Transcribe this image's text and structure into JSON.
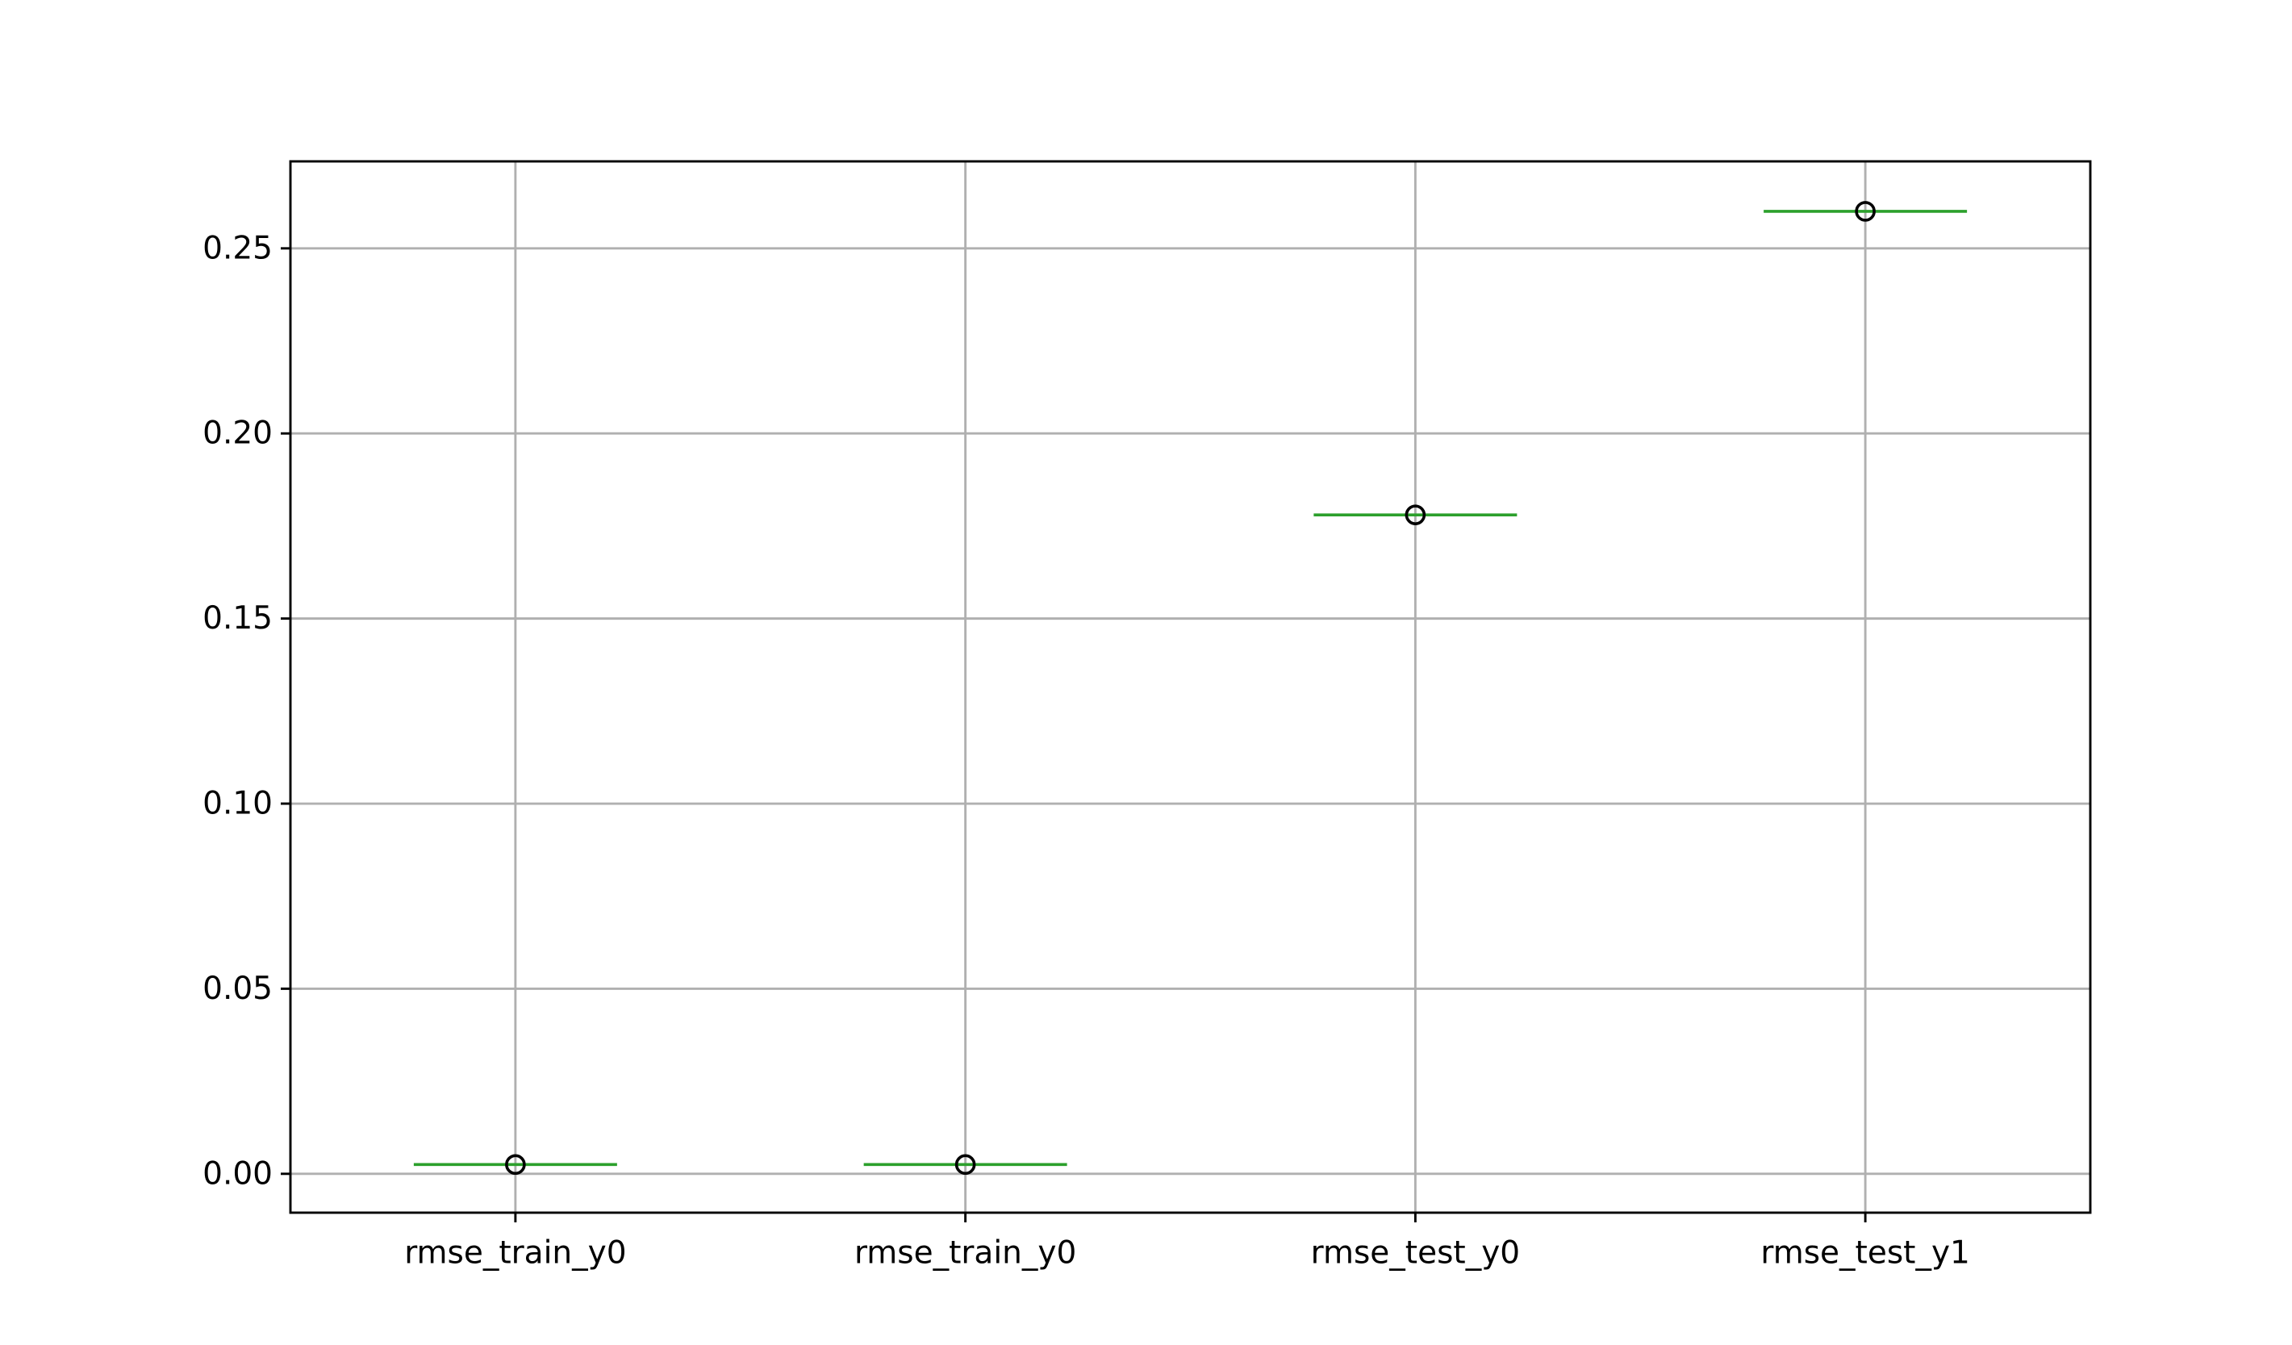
{
  "chart_data": {
    "type": "box",
    "categories": [
      "rmse_train_y0",
      "rmse_train_y0",
      "rmse_test_y0",
      "rmse_test_y1"
    ],
    "values": [
      0.0025,
      0.0025,
      0.178,
      0.26
    ],
    "ylim": [
      -0.0105,
      0.2735
    ],
    "yticks": [
      0.0,
      0.05,
      0.1,
      0.15,
      0.2,
      0.25
    ],
    "ytick_labels": [
      "0.00",
      "0.05",
      "0.10",
      "0.15",
      "0.20",
      "0.25"
    ],
    "grid": true,
    "median_color": "#2ca02c",
    "flier_color": "#000000",
    "grid_color": "#b0b0b0"
  }
}
